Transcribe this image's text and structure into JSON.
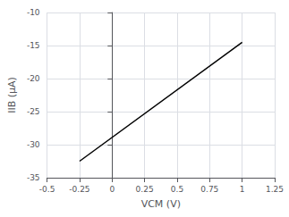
{
  "chart_data": {
    "type": "line",
    "x": [
      -0.25,
      1.0
    ],
    "values": [
      -32.5,
      -14.5
    ],
    "color": "#000000",
    "xlabel": "VCM (V)",
    "ylabel": "IIB (μA)",
    "xlim": [
      -0.5,
      1.25
    ],
    "ylim": [
      -35,
      -10
    ],
    "xticks": [
      -0.5,
      -0.25,
      0,
      0.25,
      0.5,
      0.75,
      1,
      1.25
    ],
    "yticks": [
      -35,
      -30,
      -25,
      -20,
      -15,
      -10
    ],
    "grid": true
  }
}
